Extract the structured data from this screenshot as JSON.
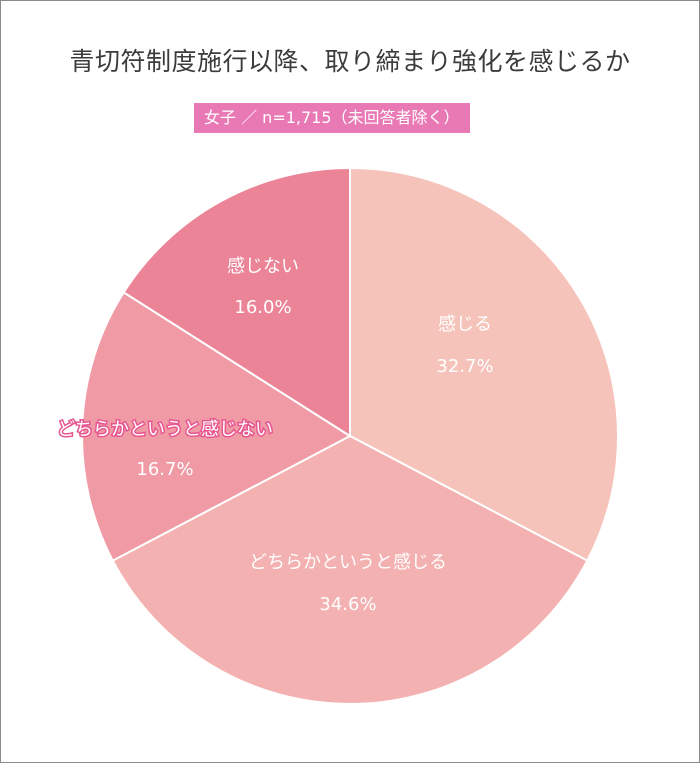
{
  "chart_data": {
    "type": "pie",
    "title": "青切符制度施行以降、取り締まり強化を感じるか",
    "subtitle": "女子 ／ n=1,715（未回答者除く）",
    "start_angle_deg": 0,
    "direction": "clockwise",
    "slices": [
      {
        "label": "感じる",
        "value": 32.7,
        "display": "32.7%",
        "color": "#f6c3bb"
      },
      {
        "label": "どちらかというと感じる",
        "value": 34.6,
        "display": "34.6%",
        "color": "#f4b1b1"
      },
      {
        "label": "どちらかというと感じない",
        "value": 16.7,
        "display": "16.7%",
        "color": "#f09aa6"
      },
      {
        "label": "感じない",
        "value": 16.0,
        "display": "16.0%",
        "color": "#eb8497"
      }
    ]
  }
}
